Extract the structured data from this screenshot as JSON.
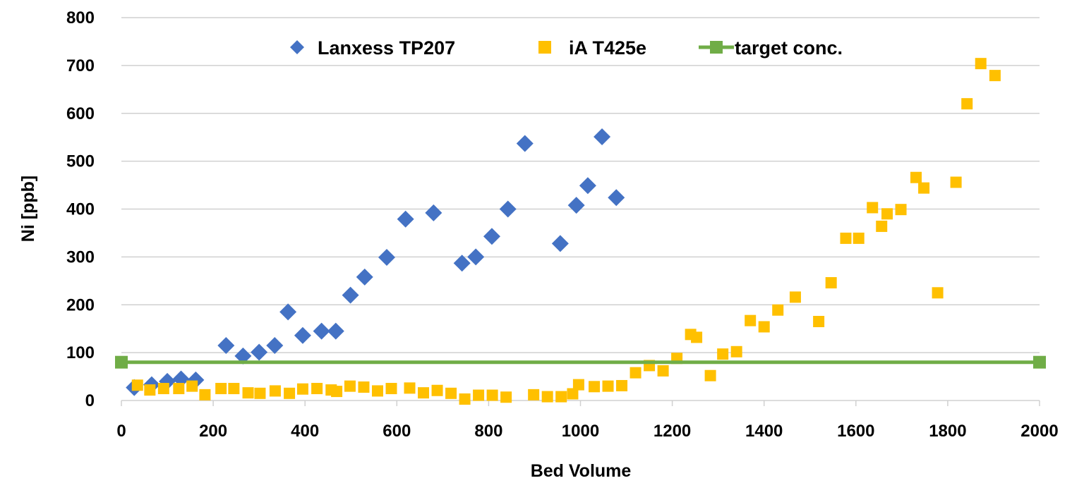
{
  "chart_data": {
    "type": "scatter",
    "xlabel": "Bed Volume",
    "ylabel": "Ni [ppb]",
    "xlim": [
      0,
      2000
    ],
    "ylim": [
      0,
      800
    ],
    "x_ticks": [
      "0",
      "200",
      "400",
      "600",
      "800",
      "1000",
      "1200",
      "1400",
      "1600",
      "1800",
      "2000"
    ],
    "y_ticks": [
      "0",
      "100",
      "200",
      "300",
      "400",
      "500",
      "600",
      "700",
      "800"
    ],
    "grid": "horizontal",
    "legend_position": "top",
    "series": [
      {
        "name": "Lanxess TP207",
        "marker": "diamond",
        "color": "#4472C4",
        "points": [
          [
            28,
            27
          ],
          [
            66,
            33
          ],
          [
            100,
            40
          ],
          [
            130,
            45
          ],
          [
            162,
            43
          ],
          [
            228,
            115
          ],
          [
            265,
            93
          ],
          [
            300,
            101
          ],
          [
            334,
            115
          ],
          [
            363,
            185
          ],
          [
            395,
            136
          ],
          [
            436,
            145
          ],
          [
            467,
            145
          ],
          [
            499,
            220
          ],
          [
            530,
            258
          ],
          [
            578,
            299
          ],
          [
            619,
            379
          ],
          [
            680,
            392
          ],
          [
            742,
            287
          ],
          [
            772,
            300
          ],
          [
            807,
            343
          ],
          [
            842,
            400
          ],
          [
            879,
            537
          ],
          [
            956,
            328
          ],
          [
            991,
            408
          ],
          [
            1016,
            449
          ],
          [
            1047,
            551
          ],
          [
            1078,
            424
          ]
        ]
      },
      {
        "name": "iA T425e",
        "marker": "square",
        "color": "#FFC000",
        "points": [
          [
            35,
            32
          ],
          [
            62,
            22
          ],
          [
            92,
            25
          ],
          [
            125,
            25
          ],
          [
            154,
            30
          ],
          [
            182,
            12
          ],
          [
            217,
            25
          ],
          [
            245,
            25
          ],
          [
            276,
            16
          ],
          [
            302,
            15
          ],
          [
            335,
            20
          ],
          [
            366,
            15
          ],
          [
            395,
            24
          ],
          [
            426,
            25
          ],
          [
            457,
            22
          ],
          [
            469,
            19
          ],
          [
            498,
            30
          ],
          [
            528,
            28
          ],
          [
            558,
            20
          ],
          [
            588,
            25
          ],
          [
            628,
            26
          ],
          [
            658,
            16
          ],
          [
            688,
            21
          ],
          [
            718,
            15
          ],
          [
            748,
            3
          ],
          [
            778,
            11
          ],
          [
            808,
            11
          ],
          [
            838,
            7
          ],
          [
            898,
            12
          ],
          [
            928,
            8
          ],
          [
            958,
            8
          ],
          [
            983,
            14
          ],
          [
            996,
            33
          ],
          [
            1030,
            29
          ],
          [
            1060,
            30
          ],
          [
            1090,
            31
          ],
          [
            1120,
            58
          ],
          [
            1150,
            73
          ],
          [
            1180,
            62
          ],
          [
            1210,
            88
          ],
          [
            1240,
            138
          ],
          [
            1253,
            132
          ],
          [
            1283,
            52
          ],
          [
            1310,
            97
          ],
          [
            1340,
            102
          ],
          [
            1370,
            167
          ],
          [
            1400,
            154
          ],
          [
            1430,
            189
          ],
          [
            1468,
            216
          ],
          [
            1519,
            165
          ],
          [
            1546,
            246
          ],
          [
            1578,
            339
          ],
          [
            1606,
            339
          ],
          [
            1636,
            403
          ],
          [
            1656,
            364
          ],
          [
            1668,
            390
          ],
          [
            1698,
            399
          ],
          [
            1731,
            466
          ],
          [
            1748,
            444
          ],
          [
            1778,
            225
          ],
          [
            1818,
            456
          ],
          [
            1842,
            620
          ],
          [
            1872,
            704
          ],
          [
            1903,
            679
          ]
        ]
      },
      {
        "name": "target conc.",
        "marker": "line-square",
        "color": "#70AD47",
        "points": [
          [
            0,
            80
          ],
          [
            2000,
            80
          ]
        ]
      }
    ]
  }
}
